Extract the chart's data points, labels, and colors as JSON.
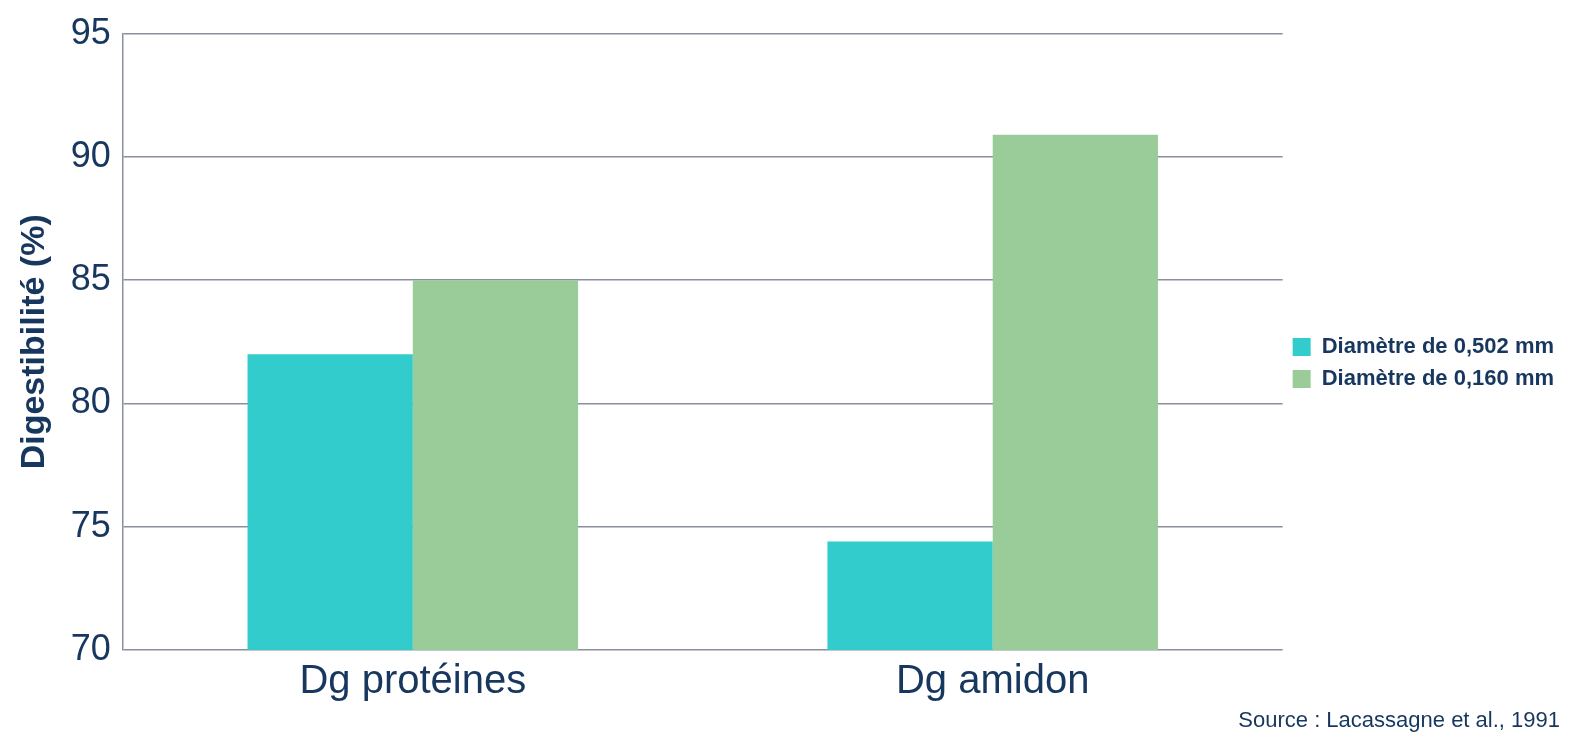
{
  "chart_data": {
    "type": "bar",
    "ylabel": "Digestibilité (%)",
    "categories": [
      "Dg protéines",
      "Dg amidon"
    ],
    "series": [
      {
        "name": "Diamètre de 0,502 mm",
        "color": "#33cccc",
        "values": [
          82,
          74.4
        ]
      },
      {
        "name": "Diamètre de 0,160 mm",
        "color": "#99cc99",
        "values": [
          85,
          90.9
        ]
      }
    ],
    "ylim": [
      70,
      95
    ],
    "yticks": [
      70,
      75,
      80,
      85,
      90,
      95
    ],
    "grid": "y",
    "legend": "right",
    "annotations": [
      "Source : Lacassagne et al., 1991"
    ]
  }
}
